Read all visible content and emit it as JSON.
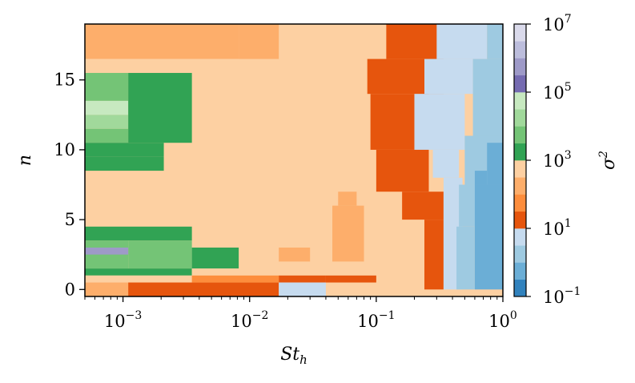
{
  "chart_data": {
    "type": "heatmap",
    "xlabel": "St",
    "xlabel_subscript": "h",
    "ylabel": "n",
    "colorbar_label": "σ",
    "colorbar_label_superscript": "2",
    "xscale": "log",
    "xlim": [
      0.0005,
      1
    ],
    "ylim": [
      -0.5,
      19
    ],
    "x_ticks": [
      {
        "value": 0.001,
        "base": "10",
        "exp": "−3"
      },
      {
        "value": 0.01,
        "base": "10",
        "exp": "−2"
      },
      {
        "value": 0.1,
        "base": "10",
        "exp": "−1"
      },
      {
        "value": 1,
        "base": "10",
        "exp": "0"
      }
    ],
    "y_ticks": [
      "0",
      "5",
      "10",
      "15"
    ],
    "colorbar_scale": "log",
    "colorbar_range": [
      0.1,
      10000000
    ],
    "colorbar_ticks": [
      {
        "base": "10",
        "exp": "−1"
      },
      {
        "base": "10",
        "exp": "1"
      },
      {
        "base": "10",
        "exp": "3"
      },
      {
        "base": "10",
        "exp": "5"
      },
      {
        "base": "10",
        "exp": "7"
      }
    ],
    "colorbar_colors": [
      "#3182bd",
      "#6baed6",
      "#9ecae1",
      "#c6dbef",
      "#e6550d",
      "#fd8d3c",
      "#fdae6b",
      "#fdd0a2",
      "#31a354",
      "#74c476",
      "#a1d99b",
      "#c7e9c0",
      "#756bb1",
      "#9e9ac8",
      "#bcbddc",
      "#dadaeb"
    ],
    "regions": [
      {
        "x": [
          0.0005,
          1
        ],
        "y": [
          -0.5,
          19
        ],
        "log10_sigma2": 2.75
      },
      {
        "x": [
          0.0005,
          0.0082
        ],
        "y": [
          16.5,
          19
        ],
        "log10_sigma2": 2.25
      },
      {
        "x": [
          0.0082,
          0.017
        ],
        "y": [
          16.5,
          19
        ],
        "log10_sigma2": 2.25
      },
      {
        "x": [
          0.0005,
          0.0082
        ],
        "y": [
          4.5,
          16.5
        ],
        "log10_sigma2": 2.75
      },
      {
        "x": [
          0.0005,
          0.0011
        ],
        "y": [
          13.5,
          15.5
        ],
        "log10_sigma2": 3.75
      },
      {
        "x": [
          0.0005,
          0.0011
        ],
        "y": [
          12.5,
          13.5
        ],
        "log10_sigma2": 4.75
      },
      {
        "x": [
          0.0005,
          0.0011
        ],
        "y": [
          11.5,
          12.5
        ],
        "log10_sigma2": 4.25
      },
      {
        "x": [
          0.0005,
          0.0011
        ],
        "y": [
          10.5,
          11.5
        ],
        "log10_sigma2": 3.75
      },
      {
        "x": [
          0.0005,
          0.0021
        ],
        "y": [
          9.5,
          10.5
        ],
        "log10_sigma2": 3.25
      },
      {
        "x": [
          0.0005,
          0.0021
        ],
        "y": [
          8.5,
          9.5
        ],
        "log10_sigma2": 3.25
      },
      {
        "x": [
          0.0011,
          0.0035
        ],
        "y": [
          10.5,
          15.5
        ],
        "log10_sigma2": 3.25
      },
      {
        "x": [
          0.0005,
          0.0035
        ],
        "y": [
          3.5,
          4.5
        ],
        "log10_sigma2": 3.25
      },
      {
        "x": [
          0.0005,
          0.0011
        ],
        "y": [
          1.5,
          3.5
        ],
        "log10_sigma2": 3.75
      },
      {
        "x": [
          0.0011,
          0.0035
        ],
        "y": [
          1.5,
          3.5
        ],
        "log10_sigma2": 3.75
      },
      {
        "x": [
          0.0005,
          0.0011
        ],
        "y": [
          2.5,
          3.0
        ],
        "log10_sigma2": 5.75
      },
      {
        "x": [
          0.0035,
          0.0082
        ],
        "y": [
          1.5,
          3.0
        ],
        "log10_sigma2": 3.25
      },
      {
        "x": [
          0.0005,
          0.0035
        ],
        "y": [
          1.0,
          1.5
        ],
        "log10_sigma2": 3.25
      },
      {
        "x": [
          0.0005,
          0.0082
        ],
        "y": [
          0.5,
          1.0
        ],
        "log10_sigma2": 2.75
      },
      {
        "x": [
          0.0035,
          0.0082
        ],
        "y": [
          1.0,
          1.5
        ],
        "log10_sigma2": 2.75
      },
      {
        "x": [
          0.0005,
          0.0011
        ],
        "y": [
          -0.5,
          0.5
        ],
        "log10_sigma2": 2.25
      },
      {
        "x": [
          0.0011,
          0.017
        ],
        "y": [
          -0.5,
          0.5
        ],
        "log10_sigma2": 1.25
      },
      {
        "x": [
          0.0035,
          0.017
        ],
        "y": [
          0.5,
          1.0
        ],
        "log10_sigma2": 1.75
      },
      {
        "x": [
          0.017,
          0.04
        ],
        "y": [
          0.5,
          1.0
        ],
        "log10_sigma2": 1.25
      },
      {
        "x": [
          0.017,
          0.04
        ],
        "y": [
          -0.5,
          0.5
        ],
        "log10_sigma2": 0.75
      },
      {
        "x": [
          0.04,
          0.1
        ],
        "y": [
          0.5,
          1.0
        ],
        "log10_sigma2": 1.25
      },
      {
        "x": [
          0.017,
          0.03
        ],
        "y": [
          2.0,
          3.0
        ],
        "log10_sigma2": 2.25
      },
      {
        "x": [
          0.05,
          0.07
        ],
        "y": [
          6.0,
          7.0
        ],
        "log10_sigma2": 2.25
      },
      {
        "x": [
          0.045,
          0.08
        ],
        "y": [
          2.0,
          6.0
        ],
        "log10_sigma2": 2.25
      },
      {
        "x": [
          0.12,
          0.34
        ],
        "y": [
          16.5,
          19
        ],
        "log10_sigma2": 1.25
      },
      {
        "x": [
          0.085,
          0.34
        ],
        "y": [
          14.0,
          16.5
        ],
        "log10_sigma2": 1.25
      },
      {
        "x": [
          0.09,
          0.26
        ],
        "y": [
          10.0,
          14.0
        ],
        "log10_sigma2": 1.25
      },
      {
        "x": [
          0.1,
          0.26
        ],
        "y": [
          7.0,
          10.0
        ],
        "log10_sigma2": 1.25
      },
      {
        "x": [
          0.16,
          0.34
        ],
        "y": [
          5.0,
          7.0
        ],
        "log10_sigma2": 1.25
      },
      {
        "x": [
          0.24,
          0.34
        ],
        "y": [
          0.0,
          5.0
        ],
        "log10_sigma2": 1.25
      },
      {
        "x": [
          0.3,
          0.75
        ],
        "y": [
          16.5,
          19
        ],
        "log10_sigma2": 0.75
      },
      {
        "x": [
          0.24,
          0.58
        ],
        "y": [
          14.0,
          16.5
        ],
        "log10_sigma2": 0.75
      },
      {
        "x": [
          0.2,
          0.5
        ],
        "y": [
          10.0,
          14.0
        ],
        "log10_sigma2": 0.75
      },
      {
        "x": [
          0.28,
          0.45
        ],
        "y": [
          8.0,
          10.0
        ],
        "log10_sigma2": 0.75
      },
      {
        "x": [
          0.34,
          0.48
        ],
        "y": [
          0.0,
          8.0
        ],
        "log10_sigma2": 0.75
      },
      {
        "x": [
          0.75,
          1
        ],
        "y": [
          16.5,
          19
        ],
        "log10_sigma2": 0.25
      },
      {
        "x": [
          0.58,
          1
        ],
        "y": [
          11.0,
          16.5
        ],
        "log10_sigma2": 0.25
      },
      {
        "x": [
          0.5,
          1
        ],
        "y": [
          7.5,
          11.0
        ],
        "log10_sigma2": 0.25
      },
      {
        "x": [
          0.45,
          1
        ],
        "y": [
          4.5,
          7.5
        ],
        "log10_sigma2": 0.25
      },
      {
        "x": [
          0.43,
          0.6
        ],
        "y": [
          0.0,
          4.5
        ],
        "log10_sigma2": 0.25
      },
      {
        "x": [
          0.75,
          1
        ],
        "y": [
          7.5,
          10.5
        ],
        "log10_sigma2": -0.25
      },
      {
        "x": [
          0.6,
          1
        ],
        "y": [
          0.0,
          7.5
        ],
        "log10_sigma2": -0.25
      },
      {
        "x": [
          0.6,
          0.75
        ],
        "y": [
          7.5,
          8.5
        ],
        "log10_sigma2": -0.25
      }
    ]
  }
}
